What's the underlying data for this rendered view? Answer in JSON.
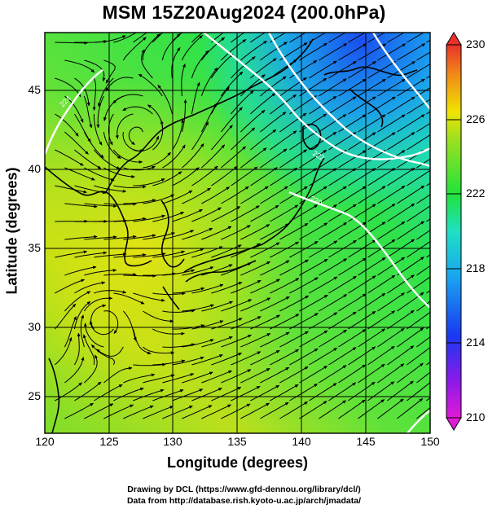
{
  "title": "MSM 15Z20Aug2024 (200.0hPa)",
  "x_axis": {
    "label": "Longitude (degrees)",
    "ticks": [
      "120",
      "125",
      "130",
      "135",
      "140",
      "145",
      "150"
    ]
  },
  "y_axis": {
    "label": "Latitude  (degrees)",
    "ticks": [
      "25",
      "30",
      "35",
      "40",
      "45"
    ]
  },
  "colorbar": {
    "ticks": [
      "210",
      "214",
      "218",
      "222",
      "226",
      "230"
    ],
    "range": [
      210,
      230
    ]
  },
  "credits": {
    "line1": "Drawing by DCL (https://www.gfd-dennou.org/library/dcl/)",
    "line2": "Data from http://database.rish.kyoto-u.ac.jp/arch/jmadata/"
  },
  "map": {
    "lon_range": [
      120,
      150
    ],
    "lat_range": [
      22.6,
      48
    ],
    "field": "temperature shading with wind streamlines",
    "contours": [
      "224",
      "222",
      "220"
    ]
  },
  "colors": {
    "yellow": "#f5e600",
    "green": "#2ee32e",
    "cyan": "#1fd8d8",
    "blue": "#1a62f0",
    "magenta": "#d81ad0",
    "red": "#e8322a"
  }
}
